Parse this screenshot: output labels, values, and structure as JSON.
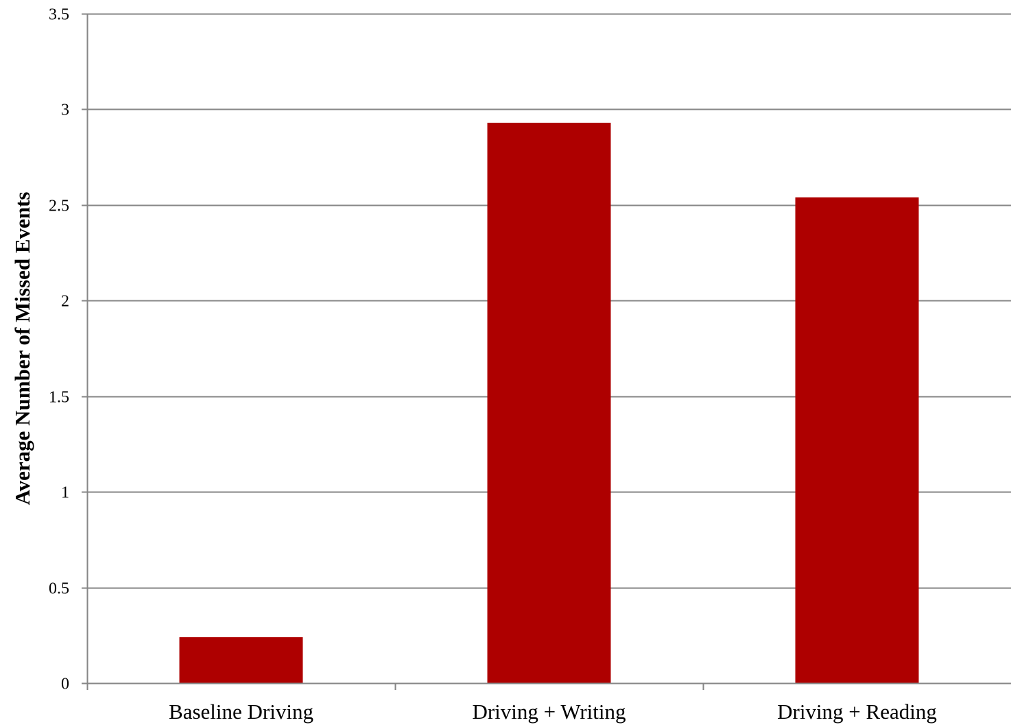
{
  "chart_data": {
    "type": "bar",
    "title": "",
    "xlabel": "",
    "ylabel": "Average Number of Missed Events",
    "categories": [
      "Baseline Driving",
      "Driving + Writing",
      "Driving + Reading"
    ],
    "values": [
      0.24,
      2.93,
      2.54
    ],
    "ylim": [
      0,
      3.5
    ],
    "yticks": [
      "0",
      "0.5",
      "1",
      "1.5",
      "2",
      "2.5",
      "3",
      "3.5"
    ],
    "grid": true,
    "legend": "none",
    "bar_color": "#AE0000",
    "grid_color": "#868686",
    "axis_color": "#868686"
  }
}
